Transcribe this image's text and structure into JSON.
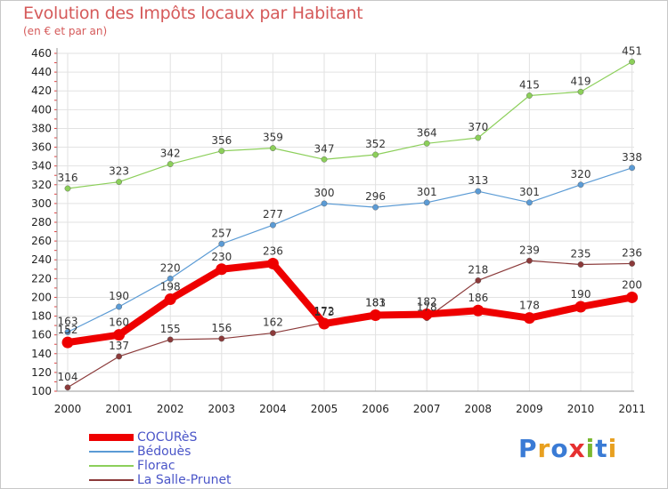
{
  "title": "Evolution des Impôts locaux par Habitant",
  "subtitle": "(en € et par an)",
  "logo": {
    "text": "Proxiti",
    "colors": [
      "#3a7bd5",
      "#e8a020",
      "#3a7bd5",
      "#e63030",
      "#7ab830",
      "#3a7bd5",
      "#e8a020"
    ]
  },
  "chart_data": {
    "type": "line",
    "title": "Evolution des Impôts locaux par Habitant",
    "subtitle": "(en € et par an)",
    "xlabel": "",
    "ylabel": "",
    "ylim": [
      100,
      460
    ],
    "yticks": [
      100,
      120,
      140,
      160,
      180,
      200,
      220,
      240,
      260,
      280,
      300,
      320,
      340,
      360,
      380,
      400,
      420,
      440,
      460
    ],
    "x": [
      "2000",
      "2001",
      "2002",
      "2003",
      "2004",
      "2005",
      "2006",
      "2007",
      "2008",
      "2009",
      "2010",
      "2011"
    ],
    "grid": true,
    "legend_position": "bottom-left",
    "series": [
      {
        "name": "COCURèS",
        "color": "#ee0000",
        "emphasis": true,
        "values": [
          152,
          160,
          198,
          230,
          236,
          172,
          181,
          182,
          186,
          178,
          190,
          200
        ],
        "labels": [
          "152",
          "160",
          "198",
          "230",
          "236",
          "172",
          "181",
          "182",
          "186",
          "178",
          "190",
          "200"
        ]
      },
      {
        "name": "Bédouès",
        "color": "#5b9bd5",
        "emphasis": false,
        "values": [
          163,
          190,
          220,
          257,
          277,
          300,
          296,
          301,
          313,
          301,
          320,
          338
        ],
        "labels": [
          "163",
          "190",
          "220",
          "257",
          "277",
          "300",
          "296",
          "301",
          "313",
          "301",
          "320",
          "338"
        ]
      },
      {
        "name": "Florac",
        "color": "#8ccf5a",
        "emphasis": false,
        "values": [
          316,
          323,
          342,
          356,
          359,
          347,
          352,
          364,
          370,
          415,
          419,
          451
        ],
        "labels": [
          "316",
          "323",
          "342",
          "356",
          "359",
          "347",
          "352",
          "364",
          "370",
          "415",
          "419",
          "451"
        ]
      },
      {
        "name": "La Salle-Prunet",
        "color": "#8b3a3a",
        "emphasis": false,
        "values": [
          104,
          137,
          155,
          156,
          162,
          173,
          183,
          178,
          218,
          239,
          235,
          236
        ],
        "labels": [
          "104",
          "137",
          "155",
          "156",
          "162",
          "173",
          "183",
          "178",
          "218",
          "239",
          "235",
          "236"
        ]
      }
    ]
  }
}
